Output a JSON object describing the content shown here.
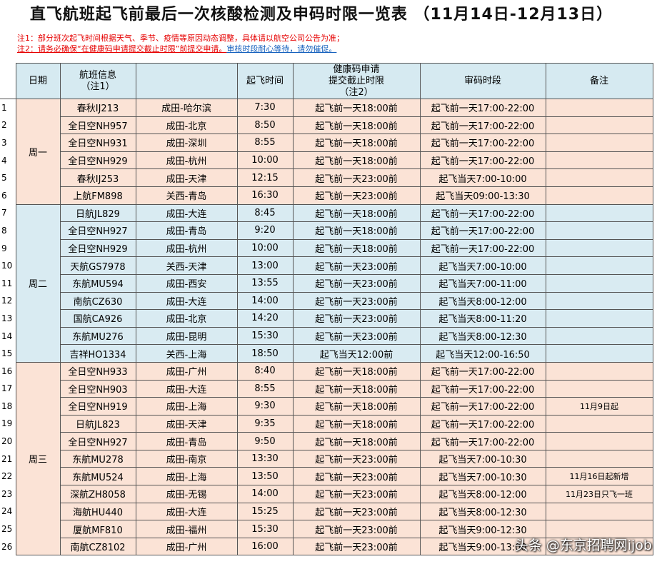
{
  "title": "直飞航班起飞前最后一次核酸检测及申码时限一览表 （11月14日-12月13日）",
  "notes": {
    "note1": "注1：部分班次起飞时间根据天气、季节、疫情等原因动态调整，具体请以航空公司公告为准；",
    "note2_a": "注2：请务必确保“在健康码申请提交截止时限”前提交申请。",
    "note2_b": "审核时段耐心等待，请勿催促。"
  },
  "headers": {
    "date": "日期",
    "flight": "航班信息\n（注1）",
    "route": "",
    "departure": "起飞时间",
    "deadline": "健康码申请\n提交截止时限\n（注2）",
    "review": "审码时段",
    "remark": "备注"
  },
  "days": [
    {
      "day": "周一",
      "rows": [
        {
          "idx": "1",
          "flight": "春秋IJ213",
          "route": "成田-哈尔滨",
          "time": "7:30",
          "deadline": "起飞前一天18:00前",
          "review": "起飞前一天17:00-22:00",
          "remark": ""
        },
        {
          "idx": "2",
          "flight": "全日空NH957",
          "route": "成田-北京",
          "time": "8:50",
          "deadline": "起飞前一天18:00前",
          "review": "起飞前一天17:00-22:00",
          "remark": ""
        },
        {
          "idx": "3",
          "flight": "全日空NH931",
          "route": "成田-深圳",
          "time": "8:55",
          "deadline": "起飞前一天18:00前",
          "review": "起飞前一天17:00-22:00",
          "remark": ""
        },
        {
          "idx": "4",
          "flight": "全日空NH929",
          "route": "成田-杭州",
          "time": "10:00",
          "deadline": "起飞前一天18:00前",
          "review": "起飞前一天17:00-22:00",
          "remark": ""
        },
        {
          "idx": "5",
          "flight": "春秋IJ253",
          "route": "成田-天津",
          "time": "12:15",
          "deadline": "起飞前一天23:00前",
          "review": "起飞当天7:00-10:00",
          "remark": ""
        },
        {
          "idx": "6",
          "flight": "上航FM898",
          "route": "关西-青岛",
          "time": "16:30",
          "deadline": "起飞前一天23:00前",
          "review": "起飞当天09:00-13:30",
          "remark": ""
        }
      ]
    },
    {
      "day": "周二",
      "rows": [
        {
          "idx": "7",
          "flight": "日航JL829",
          "route": "成田-大连",
          "time": "8:45",
          "deadline": "起飞前一天18:00前",
          "review": "起飞前一天17:00-22:00",
          "remark": ""
        },
        {
          "idx": "8",
          "flight": "全日空NH927",
          "route": "成田-青岛",
          "time": "9:20",
          "deadline": "起飞前一天18:00前",
          "review": "起飞前一天17:00-22:00",
          "remark": ""
        },
        {
          "idx": "9",
          "flight": "全日空NH929",
          "route": "成田-杭州",
          "time": "10:00",
          "deadline": "起飞前一天18:00前",
          "review": "起飞前一天17:00-22:00",
          "remark": ""
        },
        {
          "idx": "10",
          "flight": "天航GS7978",
          "route": "关西-天津",
          "time": "13:00",
          "deadline": "起飞前一天23:00前",
          "review": "起飞当天7:00-10:00",
          "remark": ""
        },
        {
          "idx": "11",
          "flight": "东航MU594",
          "route": "成田-西安",
          "time": "13:55",
          "deadline": "起飞前一天23:00前",
          "review": "起飞当天7:00-11:00",
          "remark": ""
        },
        {
          "idx": "12",
          "flight": "南航CZ630",
          "route": "成田-大连",
          "time": "14:00",
          "deadline": "起飞前一天23:00前",
          "review": "起飞当天8:00-12:00",
          "remark": ""
        },
        {
          "idx": "13",
          "flight": "国航CA926",
          "route": "成田-北京",
          "time": "14:20",
          "deadline": "起飞前一天23:00前",
          "review": "起飞当天8:00-11:20",
          "remark": ""
        },
        {
          "idx": "14",
          "flight": "东航MU276",
          "route": "成田-昆明",
          "time": "15:30",
          "deadline": "起飞前一天23:00前",
          "review": "起飞当天8:00-12:30",
          "remark": ""
        },
        {
          "idx": "15",
          "flight": "吉祥HO1334",
          "route": "关西-上海",
          "time": "18:50",
          "deadline": "起飞当天12:00前",
          "review": "起飞当天12:00-16:50",
          "remark": ""
        }
      ]
    },
    {
      "day": "周三",
      "rows": [
        {
          "idx": "16",
          "flight": "全日空NH933",
          "route": "成田-广州",
          "time": "8:40",
          "deadline": "起飞前一天18:00前",
          "review": "起飞前一天17:00-22:00",
          "remark": ""
        },
        {
          "idx": "17",
          "flight": "全日空NH903",
          "route": "成田-大连",
          "time": "8:55",
          "deadline": "起飞前一天18:00前",
          "review": "起飞前一天17:00-22:00",
          "remark": ""
        },
        {
          "idx": "18",
          "flight": "全日空NH919",
          "route": "成田-上海",
          "time": "9:30",
          "deadline": "起飞前一天18:00前",
          "review": "起飞前一天17:00-22:00",
          "remark": "11月9日起"
        },
        {
          "idx": "19",
          "flight": "日航JL823",
          "route": "成田-天津",
          "time": "9:35",
          "deadline": "起飞前一天18:00前",
          "review": "起飞前一天17:00-22:00",
          "remark": ""
        },
        {
          "idx": "20",
          "flight": "全日空NH927",
          "route": "成田-青岛",
          "time": "9:50",
          "deadline": "起飞前一天18:00前",
          "review": "起飞前一天17:00-22:00",
          "remark": ""
        },
        {
          "idx": "21",
          "flight": "东航MU278",
          "route": "成田-南京",
          "time": "13:30",
          "deadline": "起飞前一天23:00前",
          "review": "起飞当天7:00-10:30",
          "remark": ""
        },
        {
          "idx": "22",
          "flight": "东航MU524",
          "route": "成田-上海",
          "time": "13:50",
          "deadline": "起飞前一天23:00前",
          "review": "起飞当天7:00-10:30",
          "remark": "11月16日起新增"
        },
        {
          "idx": "23",
          "flight": "深航ZH8058",
          "route": "成田-无锡",
          "time": "14:00",
          "deadline": "起飞前一天23:00前",
          "review": "起飞当天8:00-12:00",
          "remark": "11月23日只飞一班"
        },
        {
          "idx": "24",
          "flight": "海航HU440",
          "route": "成田-大连",
          "time": "15:25",
          "deadline": "起飞前一天23:00前",
          "review": "起飞当天8:00-12:30",
          "remark": ""
        },
        {
          "idx": "25",
          "flight": "厦航MF810",
          "route": "成田-福州",
          "time": "15:30",
          "deadline": "起飞前一天23:00前",
          "review": "起飞当天9:00-12:30",
          "remark": ""
        },
        {
          "idx": "26",
          "flight": "南航CZ8102",
          "route": "成田-广州",
          "time": "16:00",
          "deadline": "起飞前一天23:00前",
          "review": "起飞当天9:00-13:00",
          "remark": ""
        }
      ]
    }
  ],
  "watermark": "头条 @东京招聘网ijob"
}
